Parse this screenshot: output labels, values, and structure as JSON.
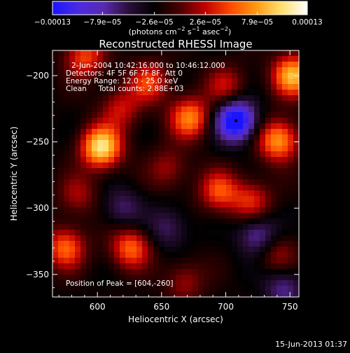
{
  "chart_data": {
    "type": "heatmap",
    "title": "Reconstructed RHESSI Image",
    "xlabel": "Heliocentric X (arcsec)",
    "ylabel": "Heliocentric Y (arcsec)",
    "xlim": [
      565,
      757
    ],
    "ylim": [
      -367,
      -181
    ],
    "x_ticks": [
      600,
      650,
      700,
      750
    ],
    "y_ticks": [
      -200,
      -250,
      -300,
      -350
    ],
    "x_tick_labels": [
      "600",
      "650",
      "700",
      "750"
    ],
    "y_tick_labels": [
      "−200",
      "−250",
      "−300",
      "−350"
    ],
    "colorbar": {
      "range": [
        -0.00013,
        0.00013
      ],
      "tick_values": [
        -0.00013,
        -7.9e-05,
        -2.6e-05,
        2.6e-05,
        7.9e-05,
        0.00013
      ],
      "tick_labels": [
        "−0.00013",
        "−7.9e−05",
        "−2.6e−05",
        "2.6e−05",
        "7.9e−05",
        "0.00013"
      ],
      "units_text": "(photons cm",
      "units_exp1": "−2",
      "units_mid": " s",
      "units_exp2": "−1",
      "units_tail": " asec",
      "units_exp3": "−2",
      "units_close": ")",
      "colors": [
        "#1a14ff",
        "#4b2be0",
        "#5a2ab0",
        "#2a0e38",
        "#000000",
        "#4a0000",
        "#c00000",
        "#ff4a00",
        "#ff9a10",
        "#ffe070",
        "#ffffff"
      ]
    },
    "info": [
      "2-Jun-2004 10:42:16.000 to 10:46:12.000",
      "Detectors: 4F 5F 6F 7F 8F, Att 0",
      "Energy Range: 12.0 - 25.0 keV",
      "Clean     Total counts: 2.88E+03"
    ],
    "peak_label": "Position of Peak = [604,-260]",
    "sources": [
      {
        "x": 603,
        "y": -254,
        "value": 0.00013
      },
      {
        "x": 752,
        "y": -200,
        "value": 0.00011
      },
      {
        "x": 741,
        "y": -249,
        "value": 0.0001
      },
      {
        "x": 672,
        "y": -232,
        "value": 9e-05
      },
      {
        "x": 626,
        "y": -330,
        "value": 8e-05
      },
      {
        "x": 590,
        "y": -186,
        "value": 7e-05
      },
      {
        "x": 695,
        "y": -287,
        "value": 7e-05
      },
      {
        "x": 640,
        "y": -205,
        "value": 6.5e-05
      },
      {
        "x": 575,
        "y": -330,
        "value": 8e-05
      },
      {
        "x": 720,
        "y": -295,
        "value": 6e-05
      },
      {
        "x": 700,
        "y": -208,
        "value": 5e-05
      },
      {
        "x": 618,
        "y": -225,
        "value": 5e-05
      },
      {
        "x": 655,
        "y": -270,
        "value": 4e-05
      },
      {
        "x": 585,
        "y": -290,
        "value": 4e-05
      },
      {
        "x": 740,
        "y": -335,
        "value": 4e-05
      },
      {
        "x": 668,
        "y": -355,
        "value": 4e-05
      },
      {
        "x": 708,
        "y": -234,
        "value": -0.00013
      },
      {
        "x": 725,
        "y": -320,
        "value": -6e-05
      },
      {
        "x": 620,
        "y": -300,
        "value": -4e-05
      },
      {
        "x": 745,
        "y": -360,
        "value": -5e-05
      },
      {
        "x": 655,
        "y": -315,
        "value": -4e-05
      }
    ]
  },
  "footer_date": "15-Jun-2013 01:37"
}
